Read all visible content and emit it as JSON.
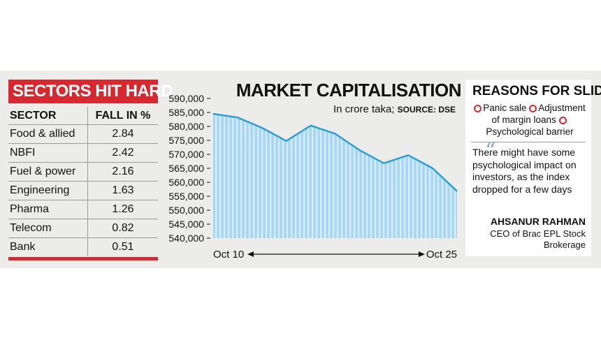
{
  "sectors_panel": {
    "title": "SECTORS HIT HARD",
    "col_sector": "SECTOR",
    "col_fall": "FALL IN %",
    "rows": [
      {
        "sector": "Food & allied",
        "fall": "2.84"
      },
      {
        "sector": "NBFI",
        "fall": "2.42"
      },
      {
        "sector": "Fuel & power",
        "fall": "2.16"
      },
      {
        "sector": "Engineering",
        "fall": "1.63"
      },
      {
        "sector": "Pharma",
        "fall": "1.26"
      },
      {
        "sector": "Telecom",
        "fall": "0.82"
      },
      {
        "sector": "Bank",
        "fall": "0.51"
      }
    ]
  },
  "chart_data": {
    "type": "area",
    "title": "MARKET CAPITALISATION",
    "subtitle": "In crore taka;",
    "source": "SOURCE: DSE",
    "x_start_label": "Oct 10",
    "x_end_label": "Oct 25",
    "ylim": [
      540000,
      590000
    ],
    "y_ticks": [
      "590,000",
      "585,000",
      "580,000",
      "575,000",
      "570,000",
      "565,000",
      "560,000",
      "555,000",
      "550,000",
      "545,000",
      "540,000"
    ],
    "values": [
      584500,
      583200,
      579500,
      574800,
      580300,
      577400,
      571500,
      566800,
      569700,
      565000,
      556800
    ],
    "colors": {
      "line": "#2a9fd8",
      "fill": "#a9d7f2",
      "stripe": "#d8eefa"
    }
  },
  "reasons_panel": {
    "title": "REASONS FOR SLIDE",
    "items": [
      "Panic sale",
      "Adjustment of margin loans",
      "Psychological barrier"
    ],
    "quote": "There might have some psychological impact on investors, as the index dropped for a few days",
    "author": "AHSANUR RAHMAN",
    "role": "CEO of Brac EPL Stock Brokerage"
  }
}
